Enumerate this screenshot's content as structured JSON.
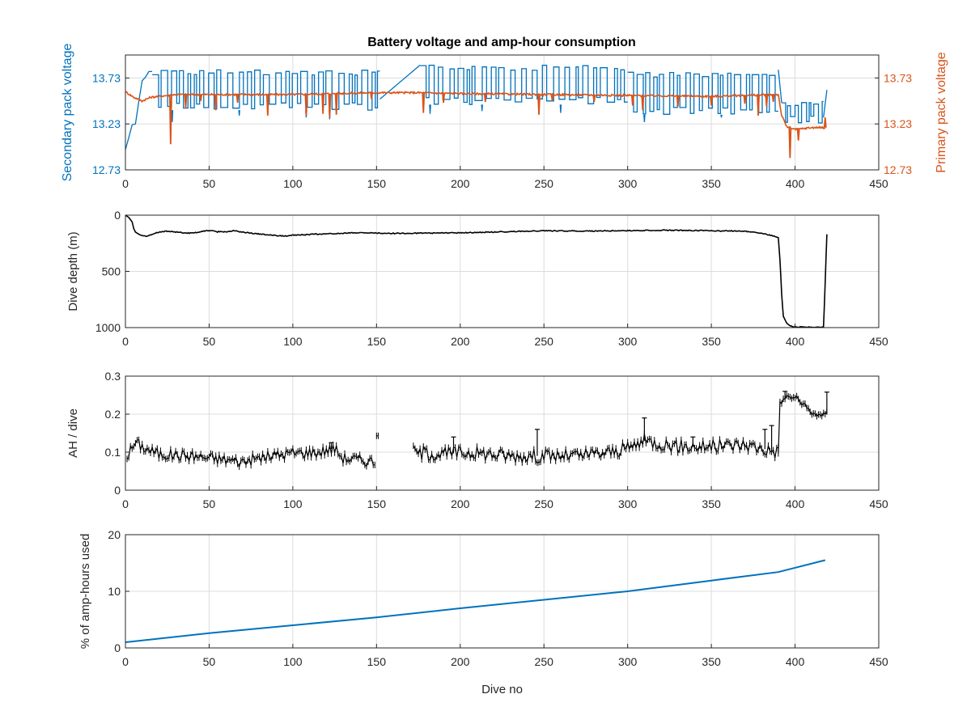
{
  "figure": {
    "title": "Battery voltage and amp-hour consumption"
  },
  "colors": {
    "secondary": "#0072BD",
    "primary": "#D95319",
    "depth": "#000000",
    "ah": "#000000",
    "pct": "#0072BD",
    "grid": "#dcdcdc",
    "axis": "#262626"
  },
  "chart_data": [
    {
      "id": "voltage",
      "type": "line",
      "title": "Battery voltage and amp-hour consumption",
      "xlabel": "",
      "ylabel": "Secondary pack voltage",
      "ylabel_right": "Primary pack voltage",
      "xlim": [
        0,
        450
      ],
      "ylim": [
        12.73,
        13.98
      ],
      "ylim_right": [
        12.73,
        13.98
      ],
      "xticks": [
        "0",
        "50",
        "100",
        "150",
        "200",
        "250",
        "300",
        "350",
        "400",
        "450"
      ],
      "yticks": [
        "12.73",
        "13.23",
        "13.73"
      ],
      "yticks_right": [
        "12.73",
        "13.23",
        "13.73"
      ],
      "grid": true,
      "series": [
        {
          "name": "Secondary pack voltage",
          "axis": "left",
          "color": "#0072BD",
          "segments": [
            {
              "kind": "points",
              "points": [
                [
                  0,
                  12.95
                ],
                [
                  2,
                  13.08
                ],
                [
                  4,
                  13.22
                ],
                [
                  6,
                  13.23
                ],
                [
                  8,
                  13.48
                ],
                [
                  10,
                  13.7
                ],
                [
                  12,
                  13.74
                ],
                [
                  14,
                  13.8
                ],
                [
                  16,
                  13.8
                ]
              ]
            },
            {
              "kind": "osc",
              "x0": 16,
              "x1": 152,
              "lo": 13.38,
              "hi": 13.82,
              "period": 3.2,
              "dips": [
                [
                  28,
                  13.25
                ],
                [
                  68,
                  13.32
                ],
                [
                  108,
                  13.3
                ],
                [
                  122,
                  13.28
                ]
              ]
            },
            {
              "kind": "points",
              "points": [
                [
                  152,
                  13.5
                ],
                [
                  176,
                  13.87
                ]
              ]
            },
            {
              "kind": "osc",
              "x0": 176,
              "x1": 300,
              "lo": 13.44,
              "hi": 13.87,
              "period": 3.4,
              "dips": [
                [
                  182,
                  13.34
                ],
                [
                  213,
                  13.37
                ],
                [
                  260,
                  13.35
                ]
              ]
            },
            {
              "kind": "osc",
              "x0": 300,
              "x1": 390,
              "lo": 13.33,
              "hi": 13.8,
              "period": 3.2,
              "dips": [
                [
                  310,
                  13.25
                ],
                [
                  356,
                  13.3
                ]
              ]
            },
            {
              "kind": "points",
              "points": [
                [
                  390,
                  13.82
                ],
                [
                  392,
                  13.46
                ]
              ]
            },
            {
              "kind": "osc",
              "x0": 392,
              "x1": 417,
              "lo": 13.24,
              "hi": 13.48,
              "period": 2.6,
              "dips": []
            },
            {
              "kind": "points",
              "points": [
                [
                  417,
                  13.3
                ],
                [
                  419,
                  13.6
                ]
              ]
            }
          ]
        },
        {
          "name": "Primary pack voltage",
          "axis": "right",
          "color": "#D95319",
          "segments": [
            {
              "kind": "points",
              "points": [
                [
                  0,
                  13.58
                ],
                [
                  5,
                  13.52
                ],
                [
                  10,
                  13.48
                ],
                [
                  15,
                  13.52
                ],
                [
                  30,
                  13.55
                ],
                [
                  60,
                  13.55
                ],
                [
                  100,
                  13.55
                ],
                [
                  150,
                  13.57
                ],
                [
                  175,
                  13.57
                ],
                [
                  200,
                  13.56
                ],
                [
                  250,
                  13.55
                ],
                [
                  300,
                  13.54
                ],
                [
                  350,
                  13.53
                ],
                [
                  390,
                  13.55
                ],
                [
                  392,
                  13.32
                ],
                [
                  395,
                  13.2
                ],
                [
                  400,
                  13.17
                ],
                [
                  410,
                  13.19
                ],
                [
                  418,
                  13.19
                ]
              ]
            },
            {
              "kind": "spikes",
              "spikes": [
                [
                  27,
                  13.01
                ],
                [
                  36,
                  13.4
                ],
                [
                  45,
                  13.48
                ],
                [
                  54,
                  13.38
                ],
                [
                  67,
                  13.46
                ],
                [
                  85,
                  13.32
                ],
                [
                  108,
                  13.32
                ],
                [
                  118,
                  13.34
                ],
                [
                  122,
                  13.3
                ],
                [
                  126,
                  13.33
                ],
                [
                  147,
                  13.5
                ],
                [
                  178,
                  13.35
                ],
                [
                  190,
                  13.46
                ],
                [
                  215,
                  13.47
                ],
                [
                  247,
                  13.33
                ],
                [
                  255,
                  13.48
                ],
                [
                  280,
                  13.47
                ],
                [
                  303,
                  13.43
                ],
                [
                  309,
                  13.38
                ],
                [
                  330,
                  13.42
                ],
                [
                  350,
                  13.43
                ],
                [
                  370,
                  13.45
                ],
                [
                  378,
                  13.32
                ],
                [
                  383,
                  13.42
                ],
                [
                  387,
                  13.47
                ],
                [
                  397,
                  12.86
                ],
                [
                  402,
                  13.05
                ],
                [
                  418,
                  13.3
                ]
              ]
            }
          ]
        }
      ]
    },
    {
      "id": "depth",
      "type": "line",
      "xlabel": "",
      "ylabel": "Dive depth (m)",
      "xlim": [
        0,
        450
      ],
      "ylim": [
        0,
        1000
      ],
      "yreverse": true,
      "xticks": [
        "0",
        "50",
        "100",
        "150",
        "200",
        "250",
        "300",
        "350",
        "400",
        "450"
      ],
      "yticks": [
        "0",
        "500",
        "1000"
      ],
      "grid": true,
      "series": [
        {
          "name": "",
          "color": "#000000",
          "points": [
            [
              0,
              0
            ],
            [
              2,
              20
            ],
            [
              4,
              60
            ],
            [
              5,
              120
            ],
            [
              6,
              150
            ],
            [
              8,
              170
            ],
            [
              10,
              182
            ],
            [
              13,
              187
            ],
            [
              16,
              172
            ],
            [
              20,
              150
            ],
            [
              25,
              142
            ],
            [
              30,
              150
            ],
            [
              35,
              158
            ],
            [
              40,
              160
            ],
            [
              45,
              148
            ],
            [
              50,
              135
            ],
            [
              55,
              148
            ],
            [
              60,
              148
            ],
            [
              65,
              138
            ],
            [
              70,
              152
            ],
            [
              80,
              168
            ],
            [
              90,
              182
            ],
            [
              95,
              185
            ],
            [
              100,
              178
            ],
            [
              120,
              166
            ],
            [
              140,
              156
            ],
            [
              160,
              162
            ],
            [
              180,
              160
            ],
            [
              200,
              157
            ],
            [
              220,
              150
            ],
            [
              240,
              142
            ],
            [
              250,
              138
            ],
            [
              260,
              140
            ],
            [
              280,
              142
            ],
            [
              300,
              138
            ],
            [
              320,
              134
            ],
            [
              340,
              137
            ],
            [
              360,
              140
            ],
            [
              370,
              142
            ],
            [
              380,
              160
            ],
            [
              388,
              190
            ],
            [
              390,
              200
            ],
            [
              391,
              400
            ],
            [
              392,
              700
            ],
            [
              393,
              900
            ],
            [
              395,
              960
            ],
            [
              397,
              985
            ],
            [
              400,
              995
            ],
            [
              405,
              995
            ],
            [
              417,
              995
            ],
            [
              418,
              600
            ],
            [
              419,
              170
            ]
          ]
        }
      ]
    },
    {
      "id": "ah",
      "type": "scatter",
      "xlabel": "",
      "ylabel": "AH / dive",
      "xlim": [
        0,
        450
      ],
      "ylim": [
        0,
        0.3
      ],
      "xticks": [
        "0",
        "50",
        "100",
        "150",
        "200",
        "250",
        "300",
        "350",
        "400",
        "450"
      ],
      "yticks": [
        "0",
        "0.1",
        "0.2",
        "0.3"
      ],
      "grid": true,
      "series": [
        {
          "name": "",
          "color": "#000000",
          "segments": [
            {
              "x0": 1,
              "x1": 149,
              "knots": [
                [
                  1,
                  0.09
                ],
                [
                  6,
                  0.125
                ],
                [
                  12,
                  0.11
                ],
                [
                  20,
                  0.095
                ],
                [
                  40,
                  0.09
                ],
                [
                  60,
                  0.08
                ],
                [
                  70,
                  0.075
                ],
                [
                  80,
                  0.085
                ],
                [
                  100,
                  0.098
                ],
                [
                  115,
                  0.1
                ],
                [
                  125,
                  0.11
                ],
                [
                  130,
                  0.085
                ],
                [
                  149,
                  0.075
                ]
              ],
              "amp": 0.015,
              "spikes": [
                [
                  123,
                  0.125
                ]
              ]
            },
            {
              "x0": 150,
              "x1": 151,
              "knots": [
                [
                  150,
                  0.143
                ],
                [
                  151,
                  0.143
                ]
              ],
              "amp": 0.0,
              "spikes": []
            },
            {
              "x0": 172,
              "x1": 390,
              "knots": [
                [
                  172,
                  0.1
                ],
                [
                  190,
                  0.095
                ],
                [
                  205,
                  0.1
                ],
                [
                  230,
                  0.09
                ],
                [
                  250,
                  0.09
                ],
                [
                  270,
                  0.09
                ],
                [
                  290,
                  0.1
                ],
                [
                  300,
                  0.11
                ],
                [
                  310,
                  0.13
                ],
                [
                  330,
                  0.115
                ],
                [
                  350,
                  0.115
                ],
                [
                  370,
                  0.12
                ],
                [
                  380,
                  0.11
                ],
                [
                  390,
                  0.1
                ]
              ],
              "amp": 0.018,
              "spikes": [
                [
                  196,
                  0.14
                ],
                [
                  246,
                  0.16
                ],
                [
                  310,
                  0.19
                ],
                [
                  339,
                  0.14
                ],
                [
                  382,
                  0.16
                ],
                [
                  386,
                  0.17
                ]
              ]
            },
            {
              "x0": 390,
              "x1": 419,
              "knots": [
                [
                  390,
                  0.1
                ],
                [
                  391,
                  0.23
                ],
                [
                  395,
                  0.245
                ],
                [
                  400,
                  0.245
                ],
                [
                  405,
                  0.225
                ],
                [
                  410,
                  0.2
                ],
                [
                  419,
                  0.2
                ]
              ],
              "amp": 0.008,
              "spikes": [
                [
                  394,
                  0.26
                ],
                [
                  419,
                  0.258
                ]
              ]
            }
          ]
        }
      ]
    },
    {
      "id": "pct",
      "type": "line",
      "xlabel": "Dive no",
      "ylabel": "% of amp-hours used",
      "xlim": [
        0,
        450
      ],
      "ylim": [
        0,
        20
      ],
      "xticks": [
        "0",
        "50",
        "100",
        "150",
        "200",
        "250",
        "300",
        "350",
        "400",
        "450"
      ],
      "yticks": [
        "0",
        "10",
        "20"
      ],
      "grid": true,
      "series": [
        {
          "name": "",
          "color": "#0072BD",
          "points": [
            [
              0,
              1.0
            ],
            [
              50,
              2.6
            ],
            [
              100,
              4.0
            ],
            [
              150,
              5.4
            ],
            [
              200,
              7.0
            ],
            [
              250,
              8.5
            ],
            [
              300,
              10.0
            ],
            [
              350,
              11.9
            ],
            [
              390,
              13.4
            ],
            [
              418,
              15.5
            ]
          ]
        }
      ]
    }
  ]
}
